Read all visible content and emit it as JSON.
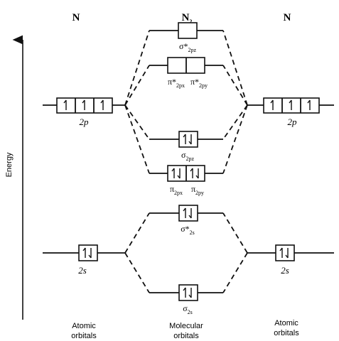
{
  "headers": {
    "left_atom": "N",
    "molecule": "N",
    "molecule_subscript": "2",
    "right_atom": "N"
  },
  "axis": {
    "label": "Energy"
  },
  "atomic": {
    "left_2p": "2p",
    "left_2s": "2s",
    "right_2p": "2p",
    "right_2s": "2s"
  },
  "molecular": {
    "sigma_star_2pz": {
      "main": "σ*",
      "sub": "2pz"
    },
    "pi_star_2px": {
      "main": "π*",
      "sub": "2px"
    },
    "pi_star_2py": {
      "main": "π*",
      "sub": "2py"
    },
    "sigma_2pz": {
      "main": "σ",
      "sub": "2pz"
    },
    "pi_2px": {
      "main": "π",
      "sub": "2px"
    },
    "pi_2py": {
      "main": "π",
      "sub": "2py"
    },
    "sigma_star_2s": {
      "main": "σ*",
      "sub": "2s"
    },
    "sigma_2s": {
      "main": "σ",
      "sub": "2s"
    }
  },
  "captions": {
    "left": [
      "Atomic",
      "orbitals"
    ],
    "middle": [
      "Molecular",
      "orbitals"
    ],
    "right": [
      "Atomic",
      "orbitals"
    ]
  }
}
